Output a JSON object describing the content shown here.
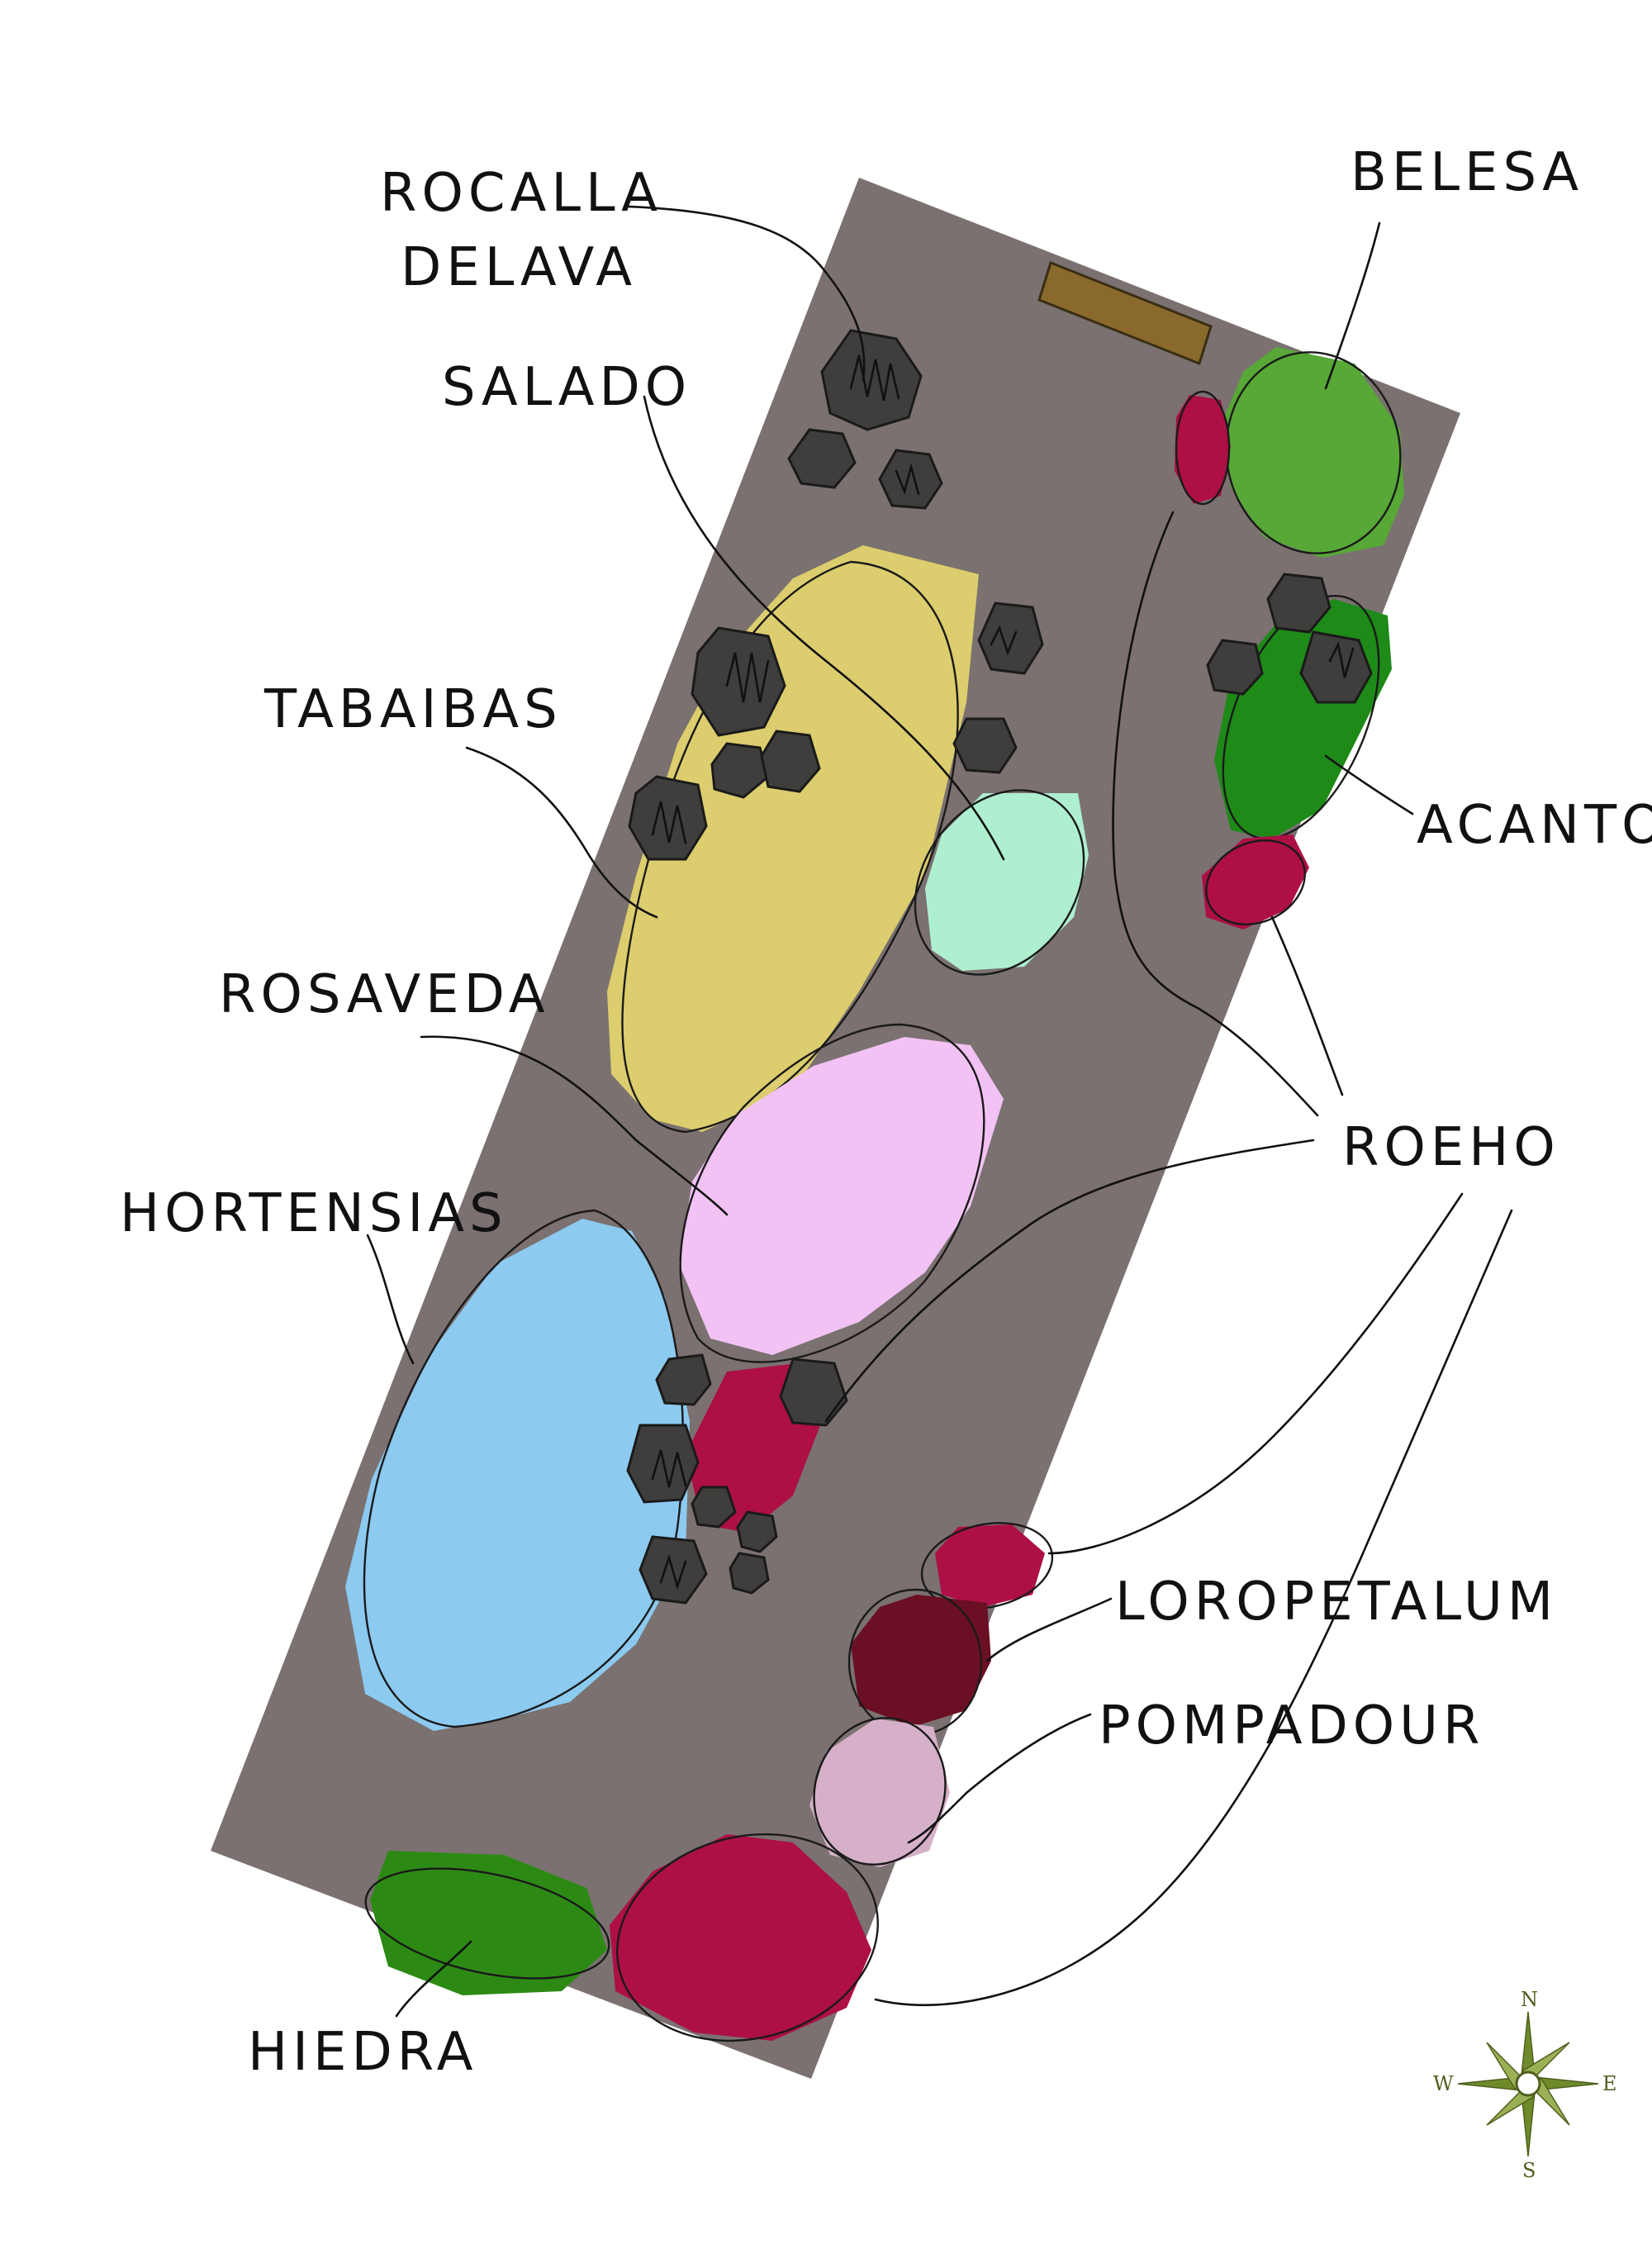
{
  "labels": {
    "rocalla_line1": "ROCALLA",
    "rocalla_line2": "DELAVA",
    "belesa": "BELESA",
    "salado": "SALADO",
    "tabaibas": "TABAIBAS",
    "acanto": "ACANTO",
    "rosaveda": "ROSAVEDA",
    "roeho": "ROEHO",
    "hortensias": "HORTENSIAS",
    "loropetalum": "LOROPETALUM",
    "pompadour": "POMPADOUR",
    "hiedra": "HIEDRA"
  },
  "compass": {
    "n": "N",
    "s": "S",
    "e": "E",
    "w": "W"
  },
  "colors": {
    "bed": "#7a7170",
    "bench": "#8a6a2c",
    "rock": "#3f3e3c",
    "yellow": "#dccd6e",
    "mint": "#aeefd0",
    "pink": "#f1c2f3",
    "blue": "#8ccaf0",
    "magenta": "#ad0f46",
    "maroon": "#6b0f24",
    "lilac": "#d6b0c8",
    "green_light": "#57a836",
    "green_dark": "#1e8a18",
    "green_hedge": "#2c8a14",
    "compass": "#6f8a2a"
  }
}
